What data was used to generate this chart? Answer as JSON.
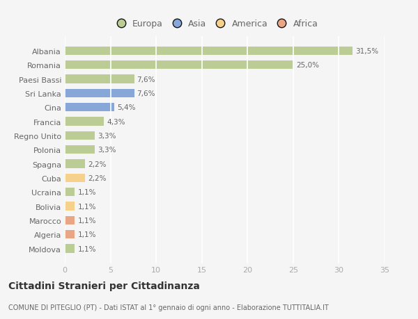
{
  "categories": [
    "Albania",
    "Romania",
    "Paesi Bassi",
    "Sri Lanka",
    "Cina",
    "Francia",
    "Regno Unito",
    "Polonia",
    "Spagna",
    "Cuba",
    "Ucraina",
    "Bolivia",
    "Marocco",
    "Algeria",
    "Moldova"
  ],
  "values": [
    31.5,
    25.0,
    7.6,
    7.6,
    5.4,
    4.3,
    3.3,
    3.3,
    2.2,
    2.2,
    1.1,
    1.1,
    1.1,
    1.1,
    1.1
  ],
  "labels": [
    "31,5%",
    "25,0%",
    "7,6%",
    "7,6%",
    "5,4%",
    "4,3%",
    "3,3%",
    "3,3%",
    "2,2%",
    "2,2%",
    "1,1%",
    "1,1%",
    "1,1%",
    "1,1%",
    "1,1%"
  ],
  "colors": [
    "#b5c98a",
    "#b5c98a",
    "#b5c98a",
    "#7a9fd4",
    "#7a9fd4",
    "#b5c98a",
    "#b5c98a",
    "#b5c98a",
    "#b5c98a",
    "#f5ce80",
    "#b5c98a",
    "#f5ce80",
    "#e89e78",
    "#e89e78",
    "#b5c98a"
  ],
  "legend_colors": {
    "Europa": "#b5c98a",
    "Asia": "#7a9fd4",
    "America": "#f5ce80",
    "Africa": "#e89e78"
  },
  "title": "Cittadini Stranieri per Cittadinanza",
  "subtitle": "COMUNE DI PITEGLIO (PT) - Dati ISTAT al 1° gennaio di ogni anno - Elaborazione TUTTITALIA.IT",
  "xlim": [
    0,
    35
  ],
  "xticks": [
    0,
    5,
    10,
    15,
    20,
    25,
    30,
    35
  ],
  "background_color": "#f5f5f5",
  "plot_bg_color": "#f5f5f5",
  "grid_color": "#ffffff",
  "bar_height": 0.6,
  "label_color": "#666666",
  "tick_color": "#aaaaaa"
}
